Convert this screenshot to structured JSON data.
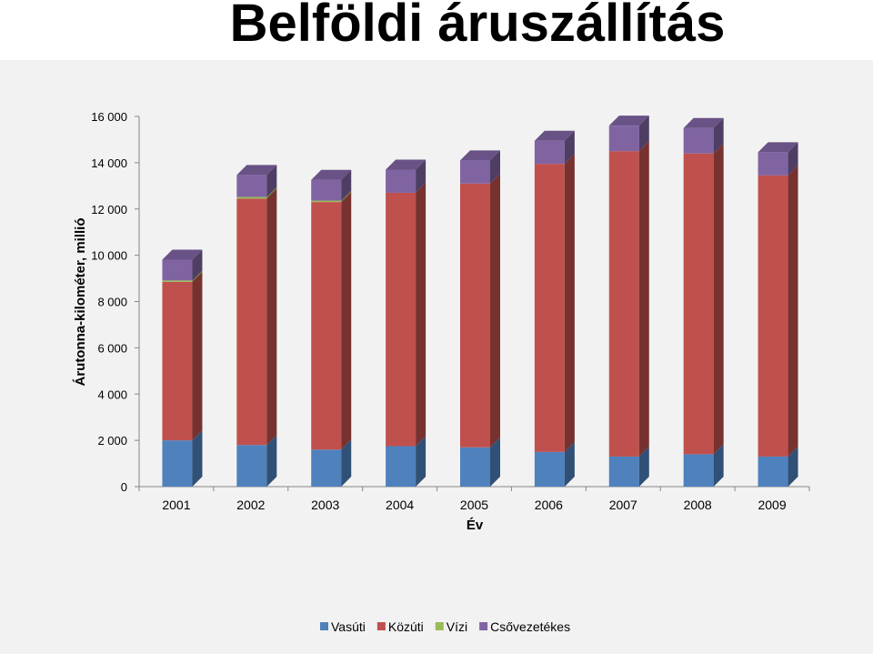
{
  "slide": {
    "title": "Belföldi áruszállítás"
  },
  "chart_data": {
    "type": "bar",
    "stacked": true,
    "three_d": true,
    "title": "",
    "xlabel": "Év",
    "ylabel": "Árutonna-kilométer, millió",
    "ylim": [
      0,
      16000
    ],
    "yticks": [
      0,
      2000,
      4000,
      6000,
      8000,
      10000,
      12000,
      14000,
      16000
    ],
    "ytick_labels": [
      "0",
      "2 000",
      "4 000",
      "6 000",
      "8 000",
      "10 000",
      "12 000",
      "14 000",
      "16 000"
    ],
    "grid": false,
    "legend": "bottom",
    "categories": [
      "2001",
      "2002",
      "2003",
      "2004",
      "2005",
      "2006",
      "2007",
      "2008",
      "2009"
    ],
    "series": [
      {
        "name": "Vasúti",
        "color": "#4f81bd",
        "values": [
          2000,
          1800,
          1600,
          1750,
          1700,
          1500,
          1300,
          1400,
          1300
        ]
      },
      {
        "name": "Közúti",
        "color": "#c0504d",
        "values": [
          6850,
          10650,
          10700,
          10950,
          11400,
          12450,
          13200,
          13000,
          12150
        ]
      },
      {
        "name": "Vízi",
        "color": "#9bbb59",
        "values": [
          60,
          70,
          60,
          0,
          0,
          0,
          0,
          0,
          0
        ]
      },
      {
        "name": "Csővezetékes",
        "color": "#8064a2",
        "values": [
          900,
          950,
          900,
          1000,
          1000,
          1000,
          1100,
          1100,
          1000
        ]
      }
    ]
  }
}
